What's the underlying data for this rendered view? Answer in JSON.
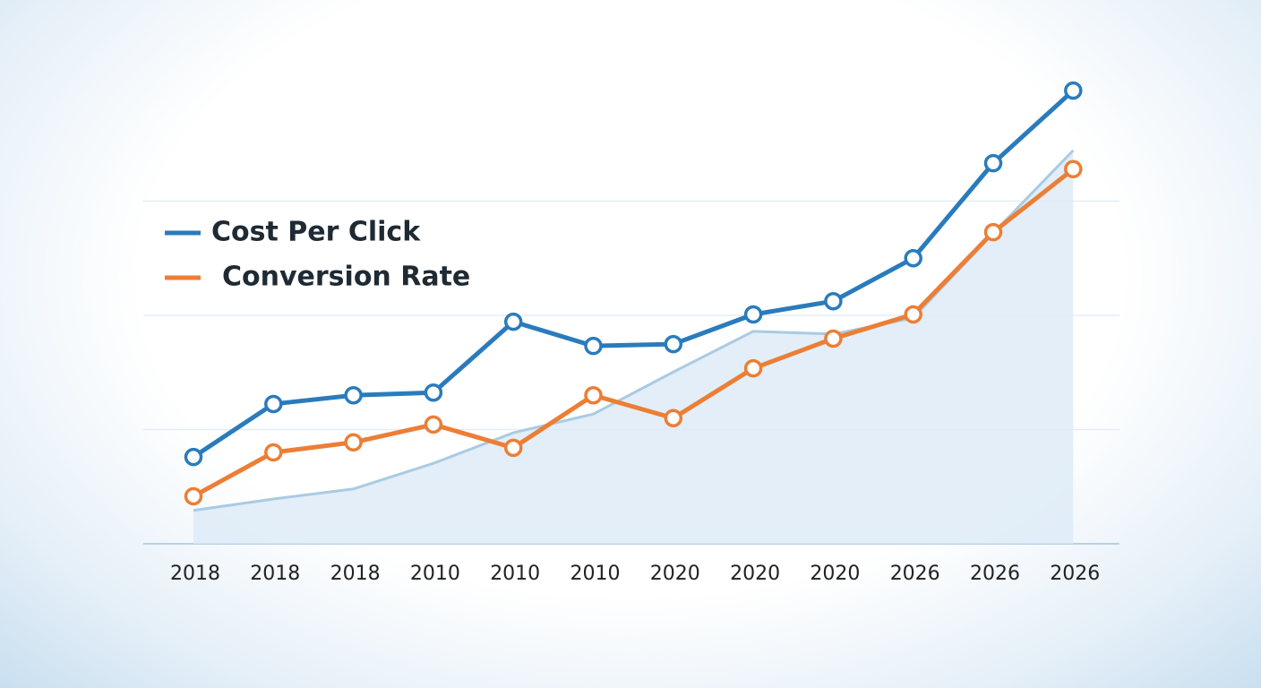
{
  "chart_data": {
    "type": "line",
    "categories": [
      "2018",
      "2018",
      "2018",
      "2010",
      "2010",
      "2010",
      "2020",
      "2020",
      "2020",
      "2026",
      "2026",
      "2026"
    ],
    "series": [
      {
        "type": "area",
        "color": "#a9cbe3",
        "values": [
          7.3,
          9.8,
          12,
          17.6,
          24.3,
          28.4,
          37.6,
          46.5,
          45.9,
          49.4,
          68,
          86.1
        ]
      },
      {
        "name": "Cost Per Click",
        "color": "#2a7bbd",
        "values": [
          19,
          30.6,
          32.5,
          33.1,
          48.6,
          43.3,
          43.7,
          50.2,
          53.1,
          62.5,
          83.3,
          99.2
        ]
      },
      {
        "name": "Conversion Rate",
        "color": "#ec7e35",
        "values": [
          10.4,
          20,
          22.2,
          26.1,
          21,
          32.5,
          27.5,
          38.4,
          44.9,
          50.2,
          68.2,
          82
        ]
      }
    ],
    "ylim": [
      0,
      100
    ],
    "yticks": [
      0,
      25,
      50,
      75
    ],
    "grid": true,
    "legend": "top-left"
  }
}
